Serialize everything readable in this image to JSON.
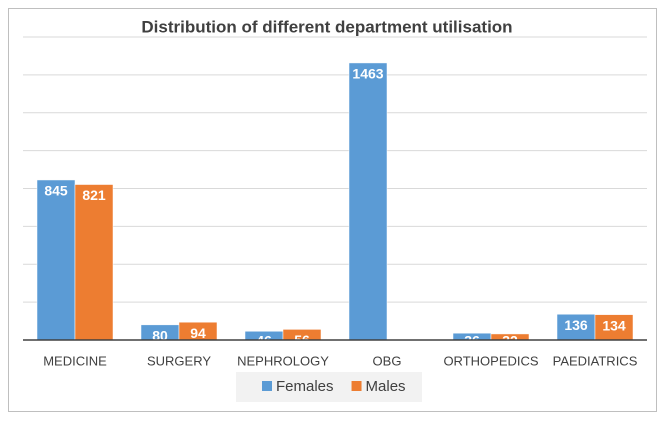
{
  "chart_data": {
    "type": "bar",
    "title": "Distribution of different department utilisation",
    "categories": [
      "MEDICINE",
      "SURGERY",
      "NEPHROLOGY",
      "OBG",
      "ORTHOPEDICS",
      "PAEDIATRICS"
    ],
    "series": [
      {
        "name": "Females",
        "color": "#5b9bd5",
        "values": [
          845,
          80,
          46,
          1463,
          36,
          136
        ]
      },
      {
        "name": "Males",
        "color": "#ed7d31",
        "values": [
          821,
          94,
          56,
          0,
          32,
          134
        ]
      }
    ],
    "ylim": [
      0,
      1600
    ],
    "yticks": [
      0,
      200,
      400,
      600,
      800,
      1000,
      1200,
      1400,
      1600
    ],
    "grid": true,
    "legend": "bottom"
  }
}
